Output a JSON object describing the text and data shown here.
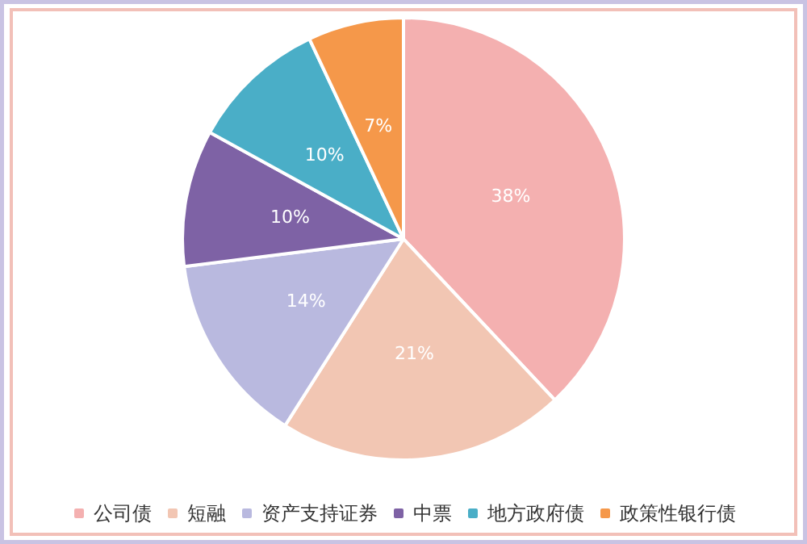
{
  "chart_data": {
    "type": "pie",
    "categories": [
      "公司债",
      "短融",
      "资产支持证券",
      "中票",
      "地方政府债",
      "政策性银行债"
    ],
    "values": [
      38,
      21,
      14,
      10,
      10,
      7
    ],
    "colors": [
      "#f4b0b0",
      "#f2c6b3",
      "#b9b9df",
      "#7e62a5",
      "#4aaec7",
      "#f5984a"
    ],
    "value_labels": [
      "38%",
      "21%",
      "14%",
      "10%",
      "10%",
      "7%"
    ],
    "legend": "bottom"
  }
}
